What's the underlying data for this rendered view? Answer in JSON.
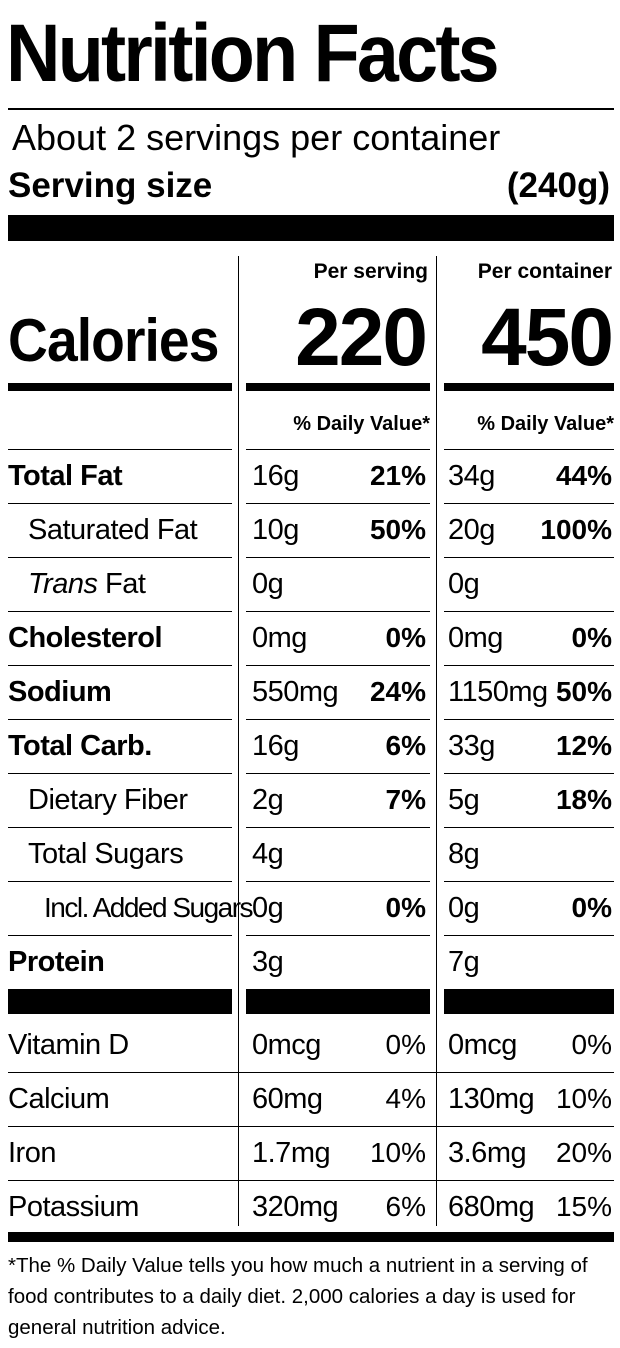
{
  "title": "Nutrition Facts",
  "servings_per_container": "About 2 servings per container",
  "serving_size_label": "Serving size",
  "serving_size_value": "(240g)",
  "columns": {
    "per_serving": "Per serving",
    "per_container": "Per container",
    "daily_value": "% Daily Value*"
  },
  "calories": {
    "label": "Calories",
    "per_serving": "220",
    "per_container": "450"
  },
  "nutrients": [
    {
      "label": "Total Fat",
      "bold": true,
      "serving_amount": "16g",
      "serving_dv": "21%",
      "container_amount": "34g",
      "container_dv": "44%"
    },
    {
      "label": "Saturated Fat",
      "serving_amount": "10g",
      "serving_dv": "50%",
      "container_amount": "20g",
      "container_dv": "100%"
    },
    {
      "label_italic": "Trans",
      "label": " Fat",
      "serving_amount": "0g",
      "serving_dv": "",
      "container_amount": "0g",
      "container_dv": ""
    },
    {
      "label": "Cholesterol",
      "bold": true,
      "serving_amount": "0mg",
      "serving_dv": "0%",
      "container_amount": "0mg",
      "container_dv": "0%"
    },
    {
      "label": "Sodium",
      "bold": true,
      "serving_amount": "550mg",
      "serving_dv": "24%",
      "container_amount": "1150mg",
      "container_dv": "50%"
    },
    {
      "label": "Total Carb.",
      "bold": true,
      "serving_amount": "16g",
      "serving_dv": "6%",
      "container_amount": "33g",
      "container_dv": "12%"
    },
    {
      "label": "Dietary Fiber",
      "serving_amount": "2g",
      "serving_dv": "7%",
      "container_amount": "5g",
      "container_dv": "18%"
    },
    {
      "label": "Total Sugars",
      "serving_amount": "4g",
      "serving_dv": "",
      "container_amount": "8g",
      "container_dv": ""
    },
    {
      "label": "Incl. Added Sugars",
      "serving_amount": "0g",
      "serving_dv": "0%",
      "container_amount": "0g",
      "container_dv": "0%"
    },
    {
      "label": "Protein",
      "bold": true,
      "serving_amount": "3g",
      "serving_dv": "",
      "container_amount": "7g",
      "container_dv": ""
    }
  ],
  "vitamins": [
    {
      "label": "Vitamin D",
      "serving_amount": "0mcg",
      "serving_dv": "0%",
      "container_amount": "0mcg",
      "container_dv": "0%"
    },
    {
      "label": "Calcium",
      "serving_amount": "60mg",
      "serving_dv": "4%",
      "container_amount": "130mg",
      "container_dv": "10%"
    },
    {
      "label": "Iron",
      "serving_amount": "1.7mg",
      "serving_dv": "10%",
      "container_amount": "3.6mg",
      "container_dv": "20%"
    },
    {
      "label": "Potassium",
      "serving_amount": "320mg",
      "serving_dv": "6%",
      "container_amount": "680mg",
      "container_dv": "15%"
    }
  ],
  "footnote": "*The % Daily Value tells you how much a nutrient in a serving of food contributes to a daily diet. 2,000 calories a day is used for general nutrition advice."
}
